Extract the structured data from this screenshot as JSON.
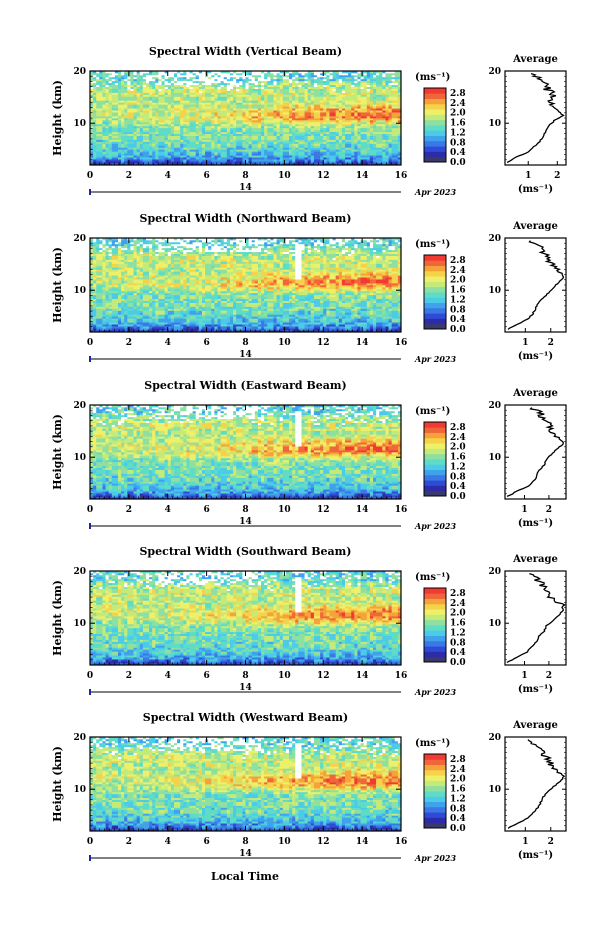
{
  "figure": {
    "xaxis_label": "Local Time",
    "yaxis_label": "Height (km)",
    "day_label": "14",
    "date_suffix": "Apr 2023",
    "unit_label": "(ms⁻¹)",
    "average_title": "Average",
    "average_unit": "(ms⁻¹)"
  },
  "colors": {
    "scale": [
      "#3a3a6a",
      "#2c2ca8",
      "#2f4bd6",
      "#3a78e6",
      "#3fa2ea",
      "#4ccbe8",
      "#5fdcc6",
      "#8fe0a0",
      "#c4ea7a",
      "#eef06a",
      "#f5d24a",
      "#f5a23a",
      "#f0663a",
      "#f03a32"
    ],
    "line": "#000000",
    "day_marker": "#1a2a9a"
  },
  "chart_data": [
    {
      "type": "heatmap",
      "title": "Spectral Width (Vertical Beam)",
      "xlabel": "",
      "ylabel": "Height (km)",
      "xlim": [
        0,
        16
      ],
      "ylim": [
        2,
        20
      ],
      "xticks": [
        "0",
        "2",
        "4",
        "6",
        "8",
        "10",
        "12",
        "14",
        "16"
      ],
      "yticks": [
        "10",
        "20"
      ],
      "colorbar": {
        "label": "(ms⁻¹)",
        "ticks": [
          "0.0",
          "0.4",
          "0.8",
          "1.2",
          "1.6",
          "2.0",
          "2.4",
          "2.8"
        ],
        "range": [
          0.0,
          3.0
        ]
      },
      "average_profile": {
        "title": "Average",
        "xlabel": "(ms⁻¹)",
        "xticks": [
          "1",
          "2"
        ],
        "yticks": [
          "10",
          "20"
        ],
        "xlim": [
          0.2,
          2.3
        ],
        "height": [
          2.5,
          3.5,
          4.5,
          5.5,
          6.5,
          7.5,
          8.5,
          9.5,
          10.5,
          11.5,
          12.5,
          13.5,
          14.5,
          15.5,
          16.5,
          17.5,
          18.5,
          19.5
        ],
        "value": [
          0.3,
          0.6,
          1.0,
          1.2,
          1.4,
          1.5,
          1.6,
          1.7,
          1.9,
          2.2,
          2.0,
          1.8,
          1.7,
          1.9,
          1.6,
          1.7,
          1.5,
          1.1
        ]
      }
    },
    {
      "type": "heatmap",
      "title": "Spectral Width (Northward Beam)",
      "xlabel": "",
      "ylabel": "Height (km)",
      "xlim": [
        0,
        16
      ],
      "ylim": [
        2,
        20
      ],
      "xticks": [
        "0",
        "2",
        "4",
        "6",
        "8",
        "10",
        "12",
        "14",
        "16"
      ],
      "yticks": [
        "10",
        "20"
      ],
      "colorbar": {
        "label": "(ms⁻¹)",
        "ticks": [
          "0.0",
          "0.4",
          "0.8",
          "1.2",
          "1.6",
          "2.0",
          "2.4",
          "2.8"
        ],
        "range": [
          0.0,
          3.0
        ]
      },
      "average_profile": {
        "title": "Average",
        "xlabel": "(ms⁻¹)",
        "xticks": [
          "1",
          "2"
        ],
        "yticks": [
          "10",
          "20"
        ],
        "xlim": [
          0.2,
          2.6
        ],
        "height": [
          2.5,
          3.5,
          4.5,
          5.5,
          6.5,
          7.5,
          8.5,
          9.5,
          10.5,
          11.5,
          12.5,
          13.5,
          14.5,
          15.5,
          16.5,
          17.5,
          18.5,
          19.5
        ],
        "value": [
          0.3,
          0.7,
          1.1,
          1.3,
          1.4,
          1.5,
          1.7,
          1.9,
          2.1,
          2.3,
          2.5,
          2.4,
          2.1,
          1.9,
          1.8,
          1.7,
          1.5,
          1.2
        ]
      }
    },
    {
      "type": "heatmap",
      "title": "Spectral Width (Eastward Beam)",
      "xlabel": "",
      "ylabel": "Height (km)",
      "xlim": [
        0,
        16
      ],
      "ylim": [
        2,
        20
      ],
      "xticks": [
        "0",
        "2",
        "4",
        "6",
        "8",
        "10",
        "12",
        "14",
        "16"
      ],
      "yticks": [
        "10",
        "20"
      ],
      "colorbar": {
        "label": "(ms⁻¹)",
        "ticks": [
          "0.0",
          "0.4",
          "0.8",
          "1.2",
          "1.6",
          "2.0",
          "2.4",
          "2.8"
        ],
        "range": [
          0.0,
          3.0
        ]
      },
      "average_profile": {
        "title": "Average",
        "xlabel": "(ms⁻¹)",
        "xticks": [
          "1",
          "2"
        ],
        "yticks": [
          "10",
          "20"
        ],
        "xlim": [
          0.2,
          2.7
        ],
        "height": [
          2.5,
          3.5,
          4.5,
          5.5,
          6.5,
          7.5,
          8.5,
          9.5,
          10.5,
          11.5,
          12.5,
          13.5,
          14.5,
          15.5,
          16.5,
          17.5,
          18.5,
          19.5
        ],
        "value": [
          0.3,
          0.7,
          1.2,
          1.4,
          1.5,
          1.6,
          1.8,
          1.9,
          2.1,
          2.3,
          2.6,
          2.5,
          2.2,
          2.0,
          2.1,
          1.8,
          1.6,
          1.3
        ]
      }
    },
    {
      "type": "heatmap",
      "title": "Spectral Width (Southward Beam)",
      "xlabel": "",
      "ylabel": "Height (km)",
      "xlim": [
        0,
        16
      ],
      "ylim": [
        2,
        20
      ],
      "xticks": [
        "0",
        "2",
        "4",
        "6",
        "8",
        "10",
        "12",
        "14",
        "16"
      ],
      "yticks": [
        "10",
        "20"
      ],
      "colorbar": {
        "label": "(ms⁻¹)",
        "ticks": [
          "0.0",
          "0.4",
          "0.8",
          "1.2",
          "1.6",
          "2.0",
          "2.4",
          "2.8"
        ],
        "range": [
          0.0,
          3.0
        ]
      },
      "average_profile": {
        "title": "Average",
        "xlabel": "(ms⁻¹)",
        "xticks": [
          "1",
          "2"
        ],
        "yticks": [
          "10",
          "20"
        ],
        "xlim": [
          0.2,
          2.7
        ],
        "height": [
          2.5,
          3.5,
          4.5,
          5.5,
          6.5,
          7.5,
          8.5,
          9.5,
          10.5,
          11.5,
          12.5,
          13.5,
          14.5,
          15.5,
          16.5,
          17.5,
          18.5,
          19.5
        ],
        "value": [
          0.3,
          0.7,
          1.1,
          1.3,
          1.5,
          1.6,
          1.8,
          1.9,
          2.2,
          2.4,
          2.6,
          2.5,
          2.2,
          2.0,
          1.8,
          1.7,
          1.5,
          1.2
        ]
      }
    },
    {
      "type": "heatmap",
      "title": "Spectral Width (Westward Beam)",
      "xlabel": "Local Time",
      "ylabel": "Height (km)",
      "xlim": [
        0,
        16
      ],
      "ylim": [
        2,
        20
      ],
      "xticks": [
        "0",
        "2",
        "4",
        "6",
        "8",
        "10",
        "12",
        "14",
        "16"
      ],
      "yticks": [
        "10",
        "20"
      ],
      "colorbar": {
        "label": "(ms⁻¹)",
        "ticks": [
          "0.0",
          "0.4",
          "0.8",
          "1.2",
          "1.6",
          "2.0",
          "2.4",
          "2.8"
        ],
        "range": [
          0.0,
          3.0
        ]
      },
      "average_profile": {
        "title": "Average",
        "xlabel": "(ms⁻¹)",
        "xticks": [
          "1",
          "2"
        ],
        "yticks": [
          "10",
          "20"
        ],
        "xlim": [
          0.2,
          2.6
        ],
        "height": [
          2.5,
          3.5,
          4.5,
          5.5,
          6.5,
          7.5,
          8.5,
          9.5,
          10.5,
          11.5,
          12.5,
          13.5,
          14.5,
          15.5,
          16.5,
          17.5,
          18.5,
          19.5
        ],
        "value": [
          0.3,
          0.7,
          1.1,
          1.3,
          1.5,
          1.6,
          1.7,
          1.9,
          2.1,
          2.4,
          2.5,
          2.3,
          2.1,
          1.9,
          1.8,
          1.6,
          1.4,
          1.1
        ]
      }
    }
  ]
}
